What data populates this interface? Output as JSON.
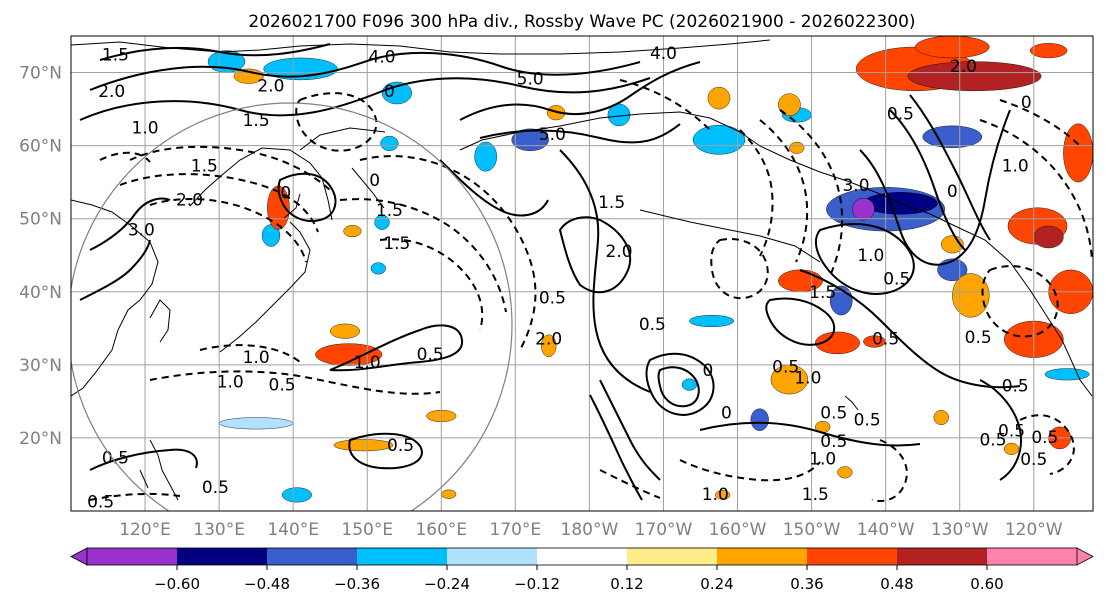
{
  "title": "2026021700 F096 300 hPa div., Rossby Wave PC (2026021900 - 2026022300)",
  "map": {
    "projection": "PlateCarree",
    "lon_range": [
      110,
      248
    ],
    "lat_range": [
      10,
      75
    ],
    "lat_ticks": [
      {
        "value": 70,
        "label": "70°N"
      },
      {
        "value": 60,
        "label": "60°N"
      },
      {
        "value": 50,
        "label": "50°N"
      },
      {
        "value": 40,
        "label": "40°N"
      },
      {
        "value": 30,
        "label": "30°N"
      },
      {
        "value": 20,
        "label": "20°N"
      }
    ],
    "lon_ticks": [
      {
        "value": 120,
        "label": "120°E"
      },
      {
        "value": 130,
        "label": "130°E"
      },
      {
        "value": 140,
        "label": "140°E"
      },
      {
        "value": 150,
        "label": "150°E"
      },
      {
        "value": 160,
        "label": "160°E"
      },
      {
        "value": 170,
        "label": "170°E"
      },
      {
        "value": 180,
        "label": "180°W"
      },
      {
        "value": 190,
        "label": "170°W"
      },
      {
        "value": 200,
        "label": "160°W"
      },
      {
        "value": 210,
        "label": "150°W"
      },
      {
        "value": 220,
        "label": "140°W"
      },
      {
        "value": 230,
        "label": "130°W"
      },
      {
        "value": 240,
        "label": "120°W"
      }
    ],
    "gridlines": true,
    "tick_label_color": "#808080",
    "contour_labels": [
      {
        "text": "1.5",
        "lon": 116,
        "lat": 72.5
      },
      {
        "text": "2.0",
        "lon": 115.5,
        "lat": 67.5
      },
      {
        "text": "1.0",
        "lon": 120,
        "lat": 62.5
      },
      {
        "text": "2.0",
        "lon": 137,
        "lat": 68.2
      },
      {
        "text": "1.5",
        "lon": 135,
        "lat": 63.5
      },
      {
        "text": "4.0",
        "lon": 152,
        "lat": 72.2
      },
      {
        "text": "0",
        "lon": 153,
        "lat": 67.5
      },
      {
        "text": "5.0",
        "lon": 172,
        "lat": 69.2
      },
      {
        "text": "5.0",
        "lon": 175,
        "lat": 61.6
      },
      {
        "text": "4.0",
        "lon": 190,
        "lat": 72.7
      },
      {
        "text": "1.5",
        "lon": 128,
        "lat": 57.3
      },
      {
        "text": "2.0",
        "lon": 126,
        "lat": 52.6
      },
      {
        "text": "3.0",
        "lon": 119.5,
        "lat": 48.5
      },
      {
        "text": "0",
        "lon": 139,
        "lat": 53.6
      },
      {
        "text": "0",
        "lon": 151,
        "lat": 55.3
      },
      {
        "text": "1.5",
        "lon": 153,
        "lat": 51.2
      },
      {
        "text": "1.5",
        "lon": 154,
        "lat": 46.7
      },
      {
        "text": "1.5",
        "lon": 183,
        "lat": 52.3
      },
      {
        "text": "2.0",
        "lon": 184,
        "lat": 45.6
      },
      {
        "text": "0.5",
        "lon": 175,
        "lat": 39.2
      },
      {
        "text": "0.5",
        "lon": 188.5,
        "lat": 35.6
      },
      {
        "text": "2.0",
        "lon": 174.5,
        "lat": 33.6
      },
      {
        "text": "1.0",
        "lon": 135,
        "lat": 31.1
      },
      {
        "text": "1.0",
        "lon": 150,
        "lat": 30.4
      },
      {
        "text": "0.5",
        "lon": 158.5,
        "lat": 31.5
      },
      {
        "text": "1.0",
        "lon": 131.5,
        "lat": 27.7
      },
      {
        "text": "0.5",
        "lon": 138.5,
        "lat": 27.3
      },
      {
        "text": "0.5",
        "lon": 116,
        "lat": 17.3
      },
      {
        "text": "0.5",
        "lon": 129.5,
        "lat": 13.3
      },
      {
        "text": "0.5",
        "lon": 114,
        "lat": 11.3
      },
      {
        "text": "0.5",
        "lon": 154.5,
        "lat": 19
      },
      {
        "text": "3.0",
        "lon": 216,
        "lat": 54.6
      },
      {
        "text": "1.0",
        "lon": 218,
        "lat": 45
      },
      {
        "text": "0.5",
        "lon": 221.5,
        "lat": 41.8
      },
      {
        "text": "1.5",
        "lon": 211.5,
        "lat": 40
      },
      {
        "text": "0.5",
        "lon": 220,
        "lat": 33.6
      },
      {
        "text": "0.5",
        "lon": 206.5,
        "lat": 29.8
      },
      {
        "text": "1.0",
        "lon": 209.5,
        "lat": 28.3
      },
      {
        "text": "0.5",
        "lon": 213,
        "lat": 23.5
      },
      {
        "text": "0.5",
        "lon": 217.5,
        "lat": 22.5
      },
      {
        "text": "0.5",
        "lon": 213,
        "lat": 19.6
      },
      {
        "text": "1.0",
        "lon": 211.5,
        "lat": 17.2
      },
      {
        "text": "1.5",
        "lon": 210.5,
        "lat": 12.3
      },
      {
        "text": "1.0",
        "lon": 197,
        "lat": 12.3
      },
      {
        "text": "0",
        "lon": 198.5,
        "lat": 23.5
      },
      {
        "text": "0",
        "lon": 196,
        "lat": 29.3
      },
      {
        "text": "0.5",
        "lon": 237,
        "lat": 21
      },
      {
        "text": "0.5",
        "lon": 234.5,
        "lat": 19.8
      },
      {
        "text": "0.5",
        "lon": 241.5,
        "lat": 20.1
      },
      {
        "text": "0.5",
        "lon": 240,
        "lat": 17.1
      },
      {
        "text": "0.5",
        "lon": 237.5,
        "lat": 27.2
      },
      {
        "text": "0.5",
        "lon": 232.5,
        "lat": 33.8
      },
      {
        "text": "0",
        "lon": 229,
        "lat": 53.8
      },
      {
        "text": "1.0",
        "lon": 237.5,
        "lat": 57.3
      },
      {
        "text": "0.5",
        "lon": 222,
        "lat": 64.4
      },
      {
        "text": "2.0",
        "lon": 230.5,
        "lat": 70.9
      },
      {
        "text": "0",
        "lon": 239,
        "lat": 66
      }
    ]
  },
  "shading": [
    {
      "lon": 131,
      "lat": 71.5,
      "rx": 2.5,
      "ry": 1.5,
      "value": -0.3
    },
    {
      "lon": 141,
      "lat": 70.5,
      "rx": 5,
      "ry": 1.5,
      "value": -0.3
    },
    {
      "lon": 154,
      "lat": 67.2,
      "rx": 2,
      "ry": 1.5,
      "value": -0.3
    },
    {
      "lon": 172,
      "lat": 60.8,
      "rx": 2.5,
      "ry": 1.5,
      "value": -0.42
    },
    {
      "lon": 184,
      "lat": 64.2,
      "rx": 1.5,
      "ry": 1.5,
      "value": -0.3
    },
    {
      "lon": 197.5,
      "lat": 60.8,
      "rx": 3.5,
      "ry": 2,
      "value": -0.3
    },
    {
      "lon": 166,
      "lat": 58.5,
      "rx": 1.5,
      "ry": 2,
      "value": -0.3
    },
    {
      "lon": 153,
      "lat": 60.3,
      "rx": 1.2,
      "ry": 1,
      "value": -0.3
    },
    {
      "lon": 220,
      "lat": 51.3,
      "rx": 8,
      "ry": 3,
      "value": -0.42
    },
    {
      "lon": 222,
      "lat": 52.1,
      "rx": 5,
      "ry": 1.5,
      "value": -0.54
    },
    {
      "lon": 217,
      "lat": 51.3,
      "rx": 1.5,
      "ry": 1.5,
      "value": -0.66
    },
    {
      "lon": 229,
      "lat": 61.2,
      "rx": 4,
      "ry": 1.5,
      "value": -0.42
    },
    {
      "lon": 208,
      "lat": 64.2,
      "rx": 2,
      "ry": 1,
      "value": -0.3
    },
    {
      "lon": 229,
      "lat": 43,
      "rx": 2,
      "ry": 1.5,
      "value": -0.42
    },
    {
      "lon": 214,
      "lat": 38.8,
      "rx": 1.5,
      "ry": 2,
      "value": -0.42
    },
    {
      "lon": 137,
      "lat": 47.7,
      "rx": 1.2,
      "ry": 1.5,
      "value": -0.3
    },
    {
      "lon": 152,
      "lat": 49.5,
      "rx": 1,
      "ry": 1,
      "value": -0.3
    },
    {
      "lon": 196.5,
      "lat": 36,
      "rx": 3,
      "ry": 0.8,
      "value": -0.3
    },
    {
      "lon": 193.5,
      "lat": 27.3,
      "rx": 1,
      "ry": 0.8,
      "value": -0.3
    },
    {
      "lon": 203,
      "lat": 22.5,
      "rx": 1.2,
      "ry": 1.5,
      "value": -0.42
    },
    {
      "lon": 207.5,
      "lat": 27.2,
      "rx": 1.2,
      "ry": 0.8,
      "value": -0.3
    },
    {
      "lon": 151.5,
      "lat": 43.2,
      "rx": 1,
      "ry": 0.8,
      "value": -0.3
    },
    {
      "lon": 135,
      "lat": 22,
      "rx": 5,
      "ry": 0.8,
      "value": -0.18
    },
    {
      "lon": 140.5,
      "lat": 12.2,
      "rx": 2,
      "ry": 1,
      "value": -0.3
    },
    {
      "lon": 244.5,
      "lat": 28.7,
      "rx": 3,
      "ry": 0.8,
      "value": -0.3
    },
    {
      "lon": 138,
      "lat": 51.5,
      "rx": 1.5,
      "ry": 3,
      "value": 0.42
    },
    {
      "lon": 148,
      "lat": 48.3,
      "rx": 1.2,
      "ry": 0.8,
      "value": 0.3
    },
    {
      "lon": 147.5,
      "lat": 31.4,
      "rx": 4.5,
      "ry": 1.5,
      "value": 0.42
    },
    {
      "lon": 147,
      "lat": 34.6,
      "rx": 2,
      "ry": 1,
      "value": 0.3
    },
    {
      "lon": 174.5,
      "lat": 32.6,
      "rx": 1,
      "ry": 1.5,
      "value": 0.3
    },
    {
      "lon": 160,
      "lat": 23,
      "rx": 2,
      "ry": 0.8,
      "value": 0.3
    },
    {
      "lon": 149.5,
      "lat": 19,
      "rx": 4,
      "ry": 0.8,
      "value": 0.3
    },
    {
      "lon": 161,
      "lat": 12.3,
      "rx": 1,
      "ry": 0.6,
      "value": 0.3
    },
    {
      "lon": 134,
      "lat": 69.5,
      "rx": 2,
      "ry": 1,
      "value": 0.3
    },
    {
      "lon": 197.5,
      "lat": 66.5,
      "rx": 1.5,
      "ry": 1.5,
      "value": 0.3
    },
    {
      "lon": 224,
      "lat": 70.5,
      "rx": 8,
      "ry": 3,
      "value": 0.42
    },
    {
      "lon": 232,
      "lat": 69.5,
      "rx": 9,
      "ry": 2,
      "value": 0.54
    },
    {
      "lon": 229,
      "lat": 73.5,
      "rx": 5,
      "ry": 1.5,
      "value": 0.42
    },
    {
      "lon": 242,
      "lat": 73,
      "rx": 2.5,
      "ry": 1,
      "value": 0.42
    },
    {
      "lon": 246,
      "lat": 59,
      "rx": 2,
      "ry": 4,
      "value": 0.42
    },
    {
      "lon": 240.5,
      "lat": 49,
      "rx": 4,
      "ry": 2.5,
      "value": 0.42
    },
    {
      "lon": 242,
      "lat": 47.5,
      "rx": 2,
      "ry": 1.5,
      "value": 0.54
    },
    {
      "lon": 245,
      "lat": 40,
      "rx": 3,
      "ry": 3,
      "value": 0.42
    },
    {
      "lon": 231.5,
      "lat": 39.5,
      "rx": 2.5,
      "ry": 3,
      "value": 0.3
    },
    {
      "lon": 240,
      "lat": 33.5,
      "rx": 4,
      "ry": 2.5,
      "value": 0.42
    },
    {
      "lon": 208.5,
      "lat": 41.5,
      "rx": 3,
      "ry": 1.5,
      "value": 0.42
    },
    {
      "lon": 207,
      "lat": 65.6,
      "rx": 1.5,
      "ry": 1.5,
      "value": 0.3
    },
    {
      "lon": 213.5,
      "lat": 33,
      "rx": 3,
      "ry": 1.5,
      "value": 0.42
    },
    {
      "lon": 207,
      "lat": 28,
      "rx": 2.5,
      "ry": 2,
      "value": 0.3
    },
    {
      "lon": 211.5,
      "lat": 21.5,
      "rx": 1,
      "ry": 0.8,
      "value": 0.3
    },
    {
      "lon": 214.5,
      "lat": 15.3,
      "rx": 1,
      "ry": 0.8,
      "value": 0.3
    },
    {
      "lon": 227.5,
      "lat": 22.8,
      "rx": 1,
      "ry": 1,
      "value": 0.3
    },
    {
      "lon": 243.5,
      "lat": 20,
      "rx": 1.5,
      "ry": 1.5,
      "value": 0.42
    },
    {
      "lon": 237,
      "lat": 18.5,
      "rx": 1,
      "ry": 0.8,
      "value": 0.3
    },
    {
      "lon": 218.5,
      "lat": 33.2,
      "rx": 1.5,
      "ry": 0.8,
      "value": 0.42
    },
    {
      "lon": 229,
      "lat": 46.5,
      "rx": 1.5,
      "ry": 1.2,
      "value": 0.3
    },
    {
      "lon": 198,
      "lat": 12.2,
      "rx": 1,
      "ry": 0.6,
      "value": 0.3
    },
    {
      "lon": 175.5,
      "lat": 64.5,
      "rx": 1.2,
      "ry": 1,
      "value": 0.3
    },
    {
      "lon": 208,
      "lat": 59.7,
      "rx": 1,
      "ry": 0.8,
      "value": 0.3
    }
  ],
  "colorbar": {
    "levels": [
      -0.72,
      -0.6,
      -0.48,
      -0.36,
      -0.24,
      -0.12,
      0.12,
      0.24,
      0.36,
      0.48,
      0.6,
      0.72
    ],
    "colors": [
      "#9932cc",
      "#000080",
      "#3a5fcd",
      "#00bfff",
      "#b0e2ff",
      "#ffffff",
      "#ffec8b",
      "#ffa500",
      "#ff4500",
      "#b22222",
      "#ff82ab"
    ],
    "under_color": "#9932cc",
    "over_color": "#ff82ab",
    "tick_labels": [
      "−0.60",
      "−0.48",
      "−0.36",
      "−0.24",
      "−0.12",
      "0.12",
      "0.24",
      "0.36",
      "0.48",
      "0.60"
    ]
  }
}
